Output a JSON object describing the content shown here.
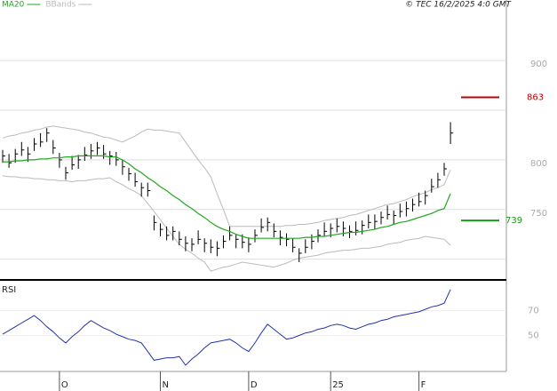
{
  "chart_data": {
    "type": "ohlc",
    "copyright": "© TEC 16/2/2025 4:0 GMT",
    "categories": [
      null,
      null,
      null,
      null,
      null,
      null,
      null,
      null,
      null,
      "O",
      null,
      null,
      null,
      null,
      null,
      null,
      null,
      null,
      null,
      null,
      null,
      null,
      null,
      null,
      null,
      "N",
      null,
      null,
      null,
      null,
      null,
      null,
      null,
      null,
      null,
      null,
      null,
      null,
      null,
      "D",
      null,
      null,
      null,
      null,
      null,
      null,
      null,
      null,
      null,
      null,
      null,
      null,
      "25",
      null,
      null,
      null,
      null,
      null,
      null,
      null,
      null,
      null,
      null,
      null,
      null,
      null,
      "F",
      null,
      null,
      null,
      null,
      null
    ],
    "high": [
      810,
      806,
      811,
      818,
      813,
      822,
      827,
      832,
      820,
      807,
      793,
      804,
      805,
      813,
      816,
      818,
      815,
      809,
      808,
      800,
      792,
      787,
      777,
      777,
      744,
      736,
      733,
      733,
      728,
      723,
      721,
      729,
      721,
      720,
      718,
      724,
      733,
      725,
      725,
      722,
      730,
      741,
      742,
      736,
      729,
      726,
      721,
      711,
      720,
      725,
      730,
      737,
      736,
      741,
      738,
      734,
      738,
      739,
      745,
      745,
      748,
      754,
      749,
      756,
      758,
      761,
      767,
      769,
      781,
      787,
      797,
      838
    ],
    "low": [
      797,
      792,
      797,
      804,
      798,
      809,
      813,
      818,
      806,
      792,
      780,
      790,
      791,
      799,
      801,
      805,
      801,
      795,
      794,
      785,
      779,
      773,
      763,
      763,
      729,
      723,
      719,
      719,
      714,
      708,
      708,
      715,
      707,
      706,
      703,
      711,
      719,
      711,
      711,
      707,
      717,
      727,
      728,
      722,
      714,
      713,
      707,
      697,
      706,
      710,
      717,
      723,
      722,
      727,
      723,
      721,
      724,
      725,
      731,
      730,
      735,
      740,
      735,
      742,
      743,
      748,
      753,
      755,
      767,
      772,
      784,
      816
    ],
    "close": [
      804,
      797,
      806,
      810,
      806,
      816,
      818,
      827,
      812,
      800,
      787,
      795,
      800,
      805,
      809,
      812,
      806,
      804,
      800,
      793,
      786,
      778,
      772,
      769,
      737,
      730,
      724,
      728,
      720,
      716,
      715,
      720,
      716,
      712,
      711,
      718,
      724,
      720,
      717,
      715,
      724,
      732,
      737,
      728,
      722,
      720,
      712,
      706,
      712,
      718,
      724,
      728,
      731,
      733,
      731,
      728,
      729,
      734,
      737,
      738,
      742,
      745,
      744,
      748,
      751,
      755,
      758,
      764,
      773,
      780,
      791,
      827
    ],
    "series": [
      {
        "name": "MA20",
        "color": "#22a722",
        "values": [
          798,
          798,
          799,
          799,
          800,
          800,
          801,
          801,
          802,
          802,
          803,
          803,
          804,
          804,
          804,
          804,
          804,
          803,
          803,
          800,
          796,
          791,
          787,
          782,
          778,
          773,
          769,
          764,
          760,
          755,
          751,
          746,
          742,
          737,
          733,
          730,
          728,
          725,
          723,
          721,
          721,
          721,
          721,
          721,
          721,
          721,
          721,
          721,
          722,
          722,
          723,
          723,
          724,
          725,
          726,
          727,
          727,
          728,
          729,
          730,
          732,
          733,
          735,
          737,
          738,
          740,
          742,
          744,
          746,
          749,
          751,
          766
        ]
      },
      {
        "name": "BBands",
        "color": "#bbbbbb",
        "upper": [
          822,
          824,
          825,
          827,
          828,
          830,
          831,
          833,
          834,
          833,
          832,
          831,
          830,
          828,
          827,
          825,
          823,
          822,
          820,
          818,
          821,
          824,
          828,
          831,
          830,
          830,
          829,
          828,
          827,
          818,
          809,
          800,
          792,
          783,
          766,
          750,
          733,
          733,
          733,
          733,
          733,
          733,
          733,
          733,
          733,
          734,
          734,
          735,
          735,
          736,
          737,
          739,
          740,
          741,
          742,
          744,
          745,
          747,
          749,
          751,
          753,
          755,
          756,
          758,
          760,
          763,
          765,
          767,
          770,
          772,
          775,
          790
        ],
        "lower": [
          784,
          783,
          783,
          782,
          782,
          781,
          781,
          780,
          780,
          779,
          779,
          778,
          779,
          779,
          780,
          781,
          781,
          782,
          778,
          775,
          771,
          768,
          764,
          756,
          748,
          740,
          731,
          723,
          715,
          710,
          706,
          701,
          697,
          688,
          690,
          692,
          693,
          695,
          697,
          696,
          695,
          694,
          693,
          692,
          694,
          696,
          699,
          701,
          702,
          703,
          704,
          706,
          707,
          708,
          709,
          709,
          710,
          711,
          711,
          712,
          713,
          715,
          716,
          717,
          719,
          720,
          721,
          723,
          722,
          721,
          720,
          714
        ]
      }
    ],
    "levels": [
      {
        "value": 863,
        "color": "#c00000"
      },
      {
        "value": 739,
        "color": "#1a9a1a"
      }
    ],
    "ylim": [
      680,
      961
    ],
    "yticks": [
      750,
      800,
      900
    ],
    "gridlines": [
      700,
      750,
      800,
      850,
      900
    ],
    "rsi": {
      "label": "RSI",
      "color": "#2233aa",
      "ylim": [
        21,
        94
      ],
      "yticks": [
        50,
        70
      ],
      "values": [
        51,
        54,
        57,
        60,
        63,
        66,
        62,
        57,
        53,
        48,
        44,
        49,
        53,
        58,
        62,
        59,
        56,
        54,
        51,
        49,
        47,
        46,
        44,
        37,
        30,
        31,
        32,
        32,
        33,
        26,
        31,
        35,
        40,
        44,
        45,
        46,
        47,
        44,
        40,
        37,
        44,
        52,
        59,
        55,
        51,
        47,
        48,
        50,
        52,
        53,
        55,
        56,
        58,
        59,
        58,
        56,
        55,
        57,
        59,
        60,
        62,
        63,
        65,
        66,
        67,
        68,
        69,
        71,
        73,
        74,
        76,
        87
      ]
    }
  }
}
